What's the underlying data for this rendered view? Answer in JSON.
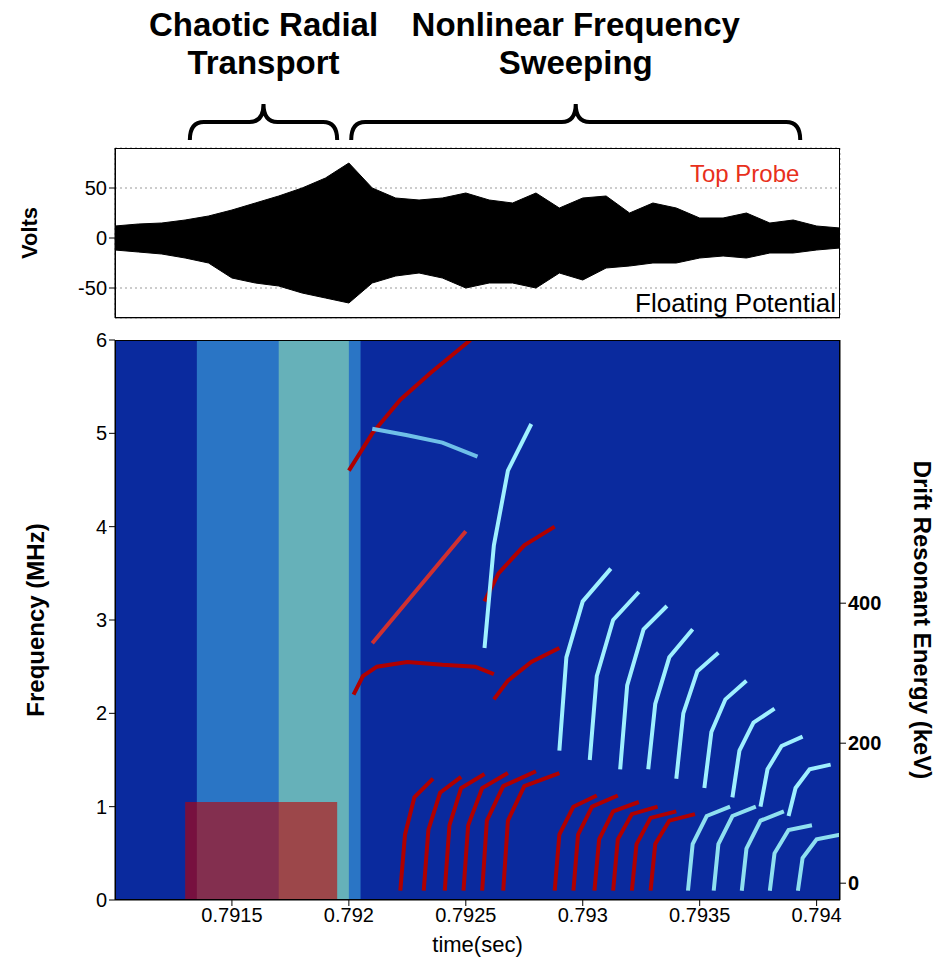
{
  "chart_data": [
    {
      "type": "area",
      "y_label": "Volts",
      "brackets": [
        {
          "text": "Chaotic Radial Transport",
          "x": [
            0.79132,
            0.79195
          ]
        },
        {
          "text": "Nonlinear Frequency Sweeping",
          "x": [
            0.79201,
            0.79393
          ]
        }
      ],
      "annotations": [
        {
          "text": "Top Probe",
          "color": "#e8301c"
        },
        {
          "text": "Floating Potential",
          "color": "#000000"
        }
      ],
      "x": [
        0.791,
        0.7911,
        0.7912,
        0.7913,
        0.7914,
        0.7915,
        0.7916,
        0.7917,
        0.7918,
        0.7919,
        0.792,
        0.7921,
        0.7922,
        0.7923,
        0.7924,
        0.7925,
        0.7926,
        0.7927,
        0.7928,
        0.7929,
        0.793,
        0.7931,
        0.7932,
        0.7933,
        0.7934,
        0.7935,
        0.7936,
        0.7937,
        0.7938,
        0.7939,
        0.794,
        0.7941
      ],
      "series": [
        {
          "color": "#000000",
          "low": [
            -12,
            -14,
            -16,
            -20,
            -25,
            -40,
            -45,
            -48,
            -55,
            -60,
            -65,
            -45,
            -38,
            -35,
            -40,
            -50,
            -45,
            -45,
            -50,
            -35,
            -42,
            -30,
            -28,
            -25,
            -25,
            -20,
            -18,
            -20,
            -15,
            -15,
            -12,
            -10
          ],
          "high": [
            12,
            14,
            15,
            18,
            22,
            28,
            35,
            42,
            50,
            60,
            75,
            50,
            40,
            38,
            40,
            45,
            38,
            35,
            45,
            30,
            40,
            42,
            25,
            35,
            30,
            20,
            20,
            25,
            15,
            18,
            12,
            10
          ]
        }
      ],
      "xlim": [
        0.791,
        0.7941
      ],
      "xticks": [
        0.7915,
        0.792,
        0.7925,
        0.793,
        0.7935,
        0.794
      ],
      "ylim": [
        -80,
        90
      ],
      "yticks": [
        -50,
        0,
        50
      ],
      "grid": true,
      "tick_labels": "y"
    },
    {
      "type": "spectrogram",
      "x_label": "time(sec)",
      "y_label": "Frequency (MHz)",
      "y2_label": "Drift Resonant Energy (keV)",
      "color": "#0a2a9e",
      "xlim": [
        0.791,
        0.7941
      ],
      "xticks": [
        0.7915,
        0.792,
        0.7925,
        0.793,
        0.7935,
        0.794
      ],
      "ylim": [
        0,
        6
      ],
      "yticks": [
        0,
        1,
        2,
        3,
        4,
        5,
        6
      ],
      "y2lim": [
        -24,
        776
      ],
      "y2ticks": [
        0,
        200,
        400
      ],
      "grid": false,
      "regions": [
        {
          "x": [
            0.79135,
            0.79205
          ],
          "y": [
            0,
            6
          ],
          "color": "#3fa8e0"
        },
        {
          "x": [
            0.7917,
            0.792
          ],
          "y": [
            0,
            6
          ],
          "color": "#8fd8b0"
        },
        {
          "x": [
            0.7913,
            0.79195
          ],
          "y": [
            0,
            1.05
          ],
          "color": "#c00000"
        }
      ],
      "series": [
        {
          "color": "#b00000",
          "x": [
            0.792,
            0.7921,
            0.79222,
            0.79235,
            0.79252
          ],
          "values": [
            4.6,
            5.0,
            5.36,
            5.65,
            6.0
          ]
        },
        {
          "color": "#b00000",
          "x": [
            0.79202,
            0.79206,
            0.79212,
            0.79225,
            0.7924,
            0.79254,
            0.79262
          ],
          "values": [
            2.2,
            2.4,
            2.5,
            2.55,
            2.52,
            2.5,
            2.42
          ]
        },
        {
          "color": "#d03030",
          "x": [
            0.7921,
            0.79225,
            0.7924,
            0.7925
          ],
          "values": [
            2.75,
            3.2,
            3.65,
            3.95
          ]
        },
        {
          "color": "#6fc0e8",
          "x": [
            0.7921,
            0.79225,
            0.7924,
            0.79255
          ],
          "values": [
            5.05,
            4.98,
            4.9,
            4.75
          ]
        },
        {
          "color": "#b00000",
          "x": [
            0.79258,
            0.79264,
            0.79275,
            0.79288
          ],
          "values": [
            3.2,
            3.5,
            3.8,
            4.0
          ]
        },
        {
          "color": "#b00000",
          "x": [
            0.79262,
            0.79268,
            0.79278,
            0.7929
          ],
          "values": [
            2.15,
            2.35,
            2.55,
            2.7
          ]
        },
        {
          "color": "#9ff0ff",
          "x": [
            0.79258,
            0.79262,
            0.79268,
            0.79278
          ],
          "values": [
            2.7,
            3.8,
            4.6,
            5.1
          ]
        },
        {
          "color": "#9ff0ff",
          "x": [
            0.7929,
            0.79293,
            0.793,
            0.79312
          ],
          "values": [
            1.6,
            2.6,
            3.2,
            3.55
          ]
        },
        {
          "color": "#9ff0ff",
          "x": [
            0.79303,
            0.79306,
            0.79313,
            0.79324
          ],
          "values": [
            1.5,
            2.4,
            3.0,
            3.3
          ]
        },
        {
          "color": "#9ff0ff",
          "x": [
            0.79316,
            0.79319,
            0.79326,
            0.79336
          ],
          "values": [
            1.4,
            2.3,
            2.9,
            3.15
          ]
        },
        {
          "color": "#9ff0ff",
          "x": [
            0.79328,
            0.79331,
            0.79337,
            0.79347
          ],
          "values": [
            1.4,
            2.1,
            2.6,
            2.9
          ]
        },
        {
          "color": "#9ff0ff",
          "x": [
            0.7934,
            0.79343,
            0.79349,
            0.79358
          ],
          "values": [
            1.3,
            2.0,
            2.45,
            2.65
          ]
        },
        {
          "color": "#9ff0ff",
          "x": [
            0.79352,
            0.79355,
            0.79361,
            0.7937
          ],
          "values": [
            1.2,
            1.8,
            2.15,
            2.35
          ]
        },
        {
          "color": "#9ff0ff",
          "x": [
            0.79364,
            0.79367,
            0.79373,
            0.79382
          ],
          "values": [
            1.1,
            1.6,
            1.9,
            2.05
          ]
        },
        {
          "color": "#9ff0ff",
          "x": [
            0.79376,
            0.79379,
            0.79385,
            0.79394
          ],
          "values": [
            1.0,
            1.4,
            1.65,
            1.75
          ]
        },
        {
          "color": "#9ff0ff",
          "x": [
            0.79388,
            0.79391,
            0.79397,
            0.79406
          ],
          "values": [
            0.9,
            1.2,
            1.4,
            1.45
          ]
        },
        {
          "color": "#b00000",
          "x": [
            0.79222,
            0.79224,
            0.79228,
            0.79236
          ],
          "values": [
            0.1,
            0.7,
            1.1,
            1.3
          ]
        },
        {
          "color": "#b00000",
          "x": [
            0.79232,
            0.79234,
            0.79239,
            0.79248
          ],
          "values": [
            0.1,
            0.75,
            1.15,
            1.32
          ]
        },
        {
          "color": "#b00000",
          "x": [
            0.79241,
            0.79243,
            0.79248,
            0.79258
          ],
          "values": [
            0.1,
            0.8,
            1.2,
            1.35
          ]
        },
        {
          "color": "#b00000",
          "x": [
            0.79249,
            0.79251,
            0.79257,
            0.79268
          ],
          "values": [
            0.1,
            0.8,
            1.2,
            1.36
          ]
        },
        {
          "color": "#b00000",
          "x": [
            0.79257,
            0.79259,
            0.79266,
            0.7928
          ],
          "values": [
            0.1,
            0.85,
            1.22,
            1.38
          ]
        },
        {
          "color": "#b00000",
          "x": [
            0.79266,
            0.79268,
            0.79275,
            0.7929
          ],
          "values": [
            0.1,
            0.85,
            1.22,
            1.36
          ]
        },
        {
          "color": "#b00000",
          "x": [
            0.79288,
            0.7929,
            0.79296,
            0.79306
          ],
          "values": [
            0.1,
            0.7,
            1.0,
            1.12
          ]
        },
        {
          "color": "#b00000",
          "x": [
            0.79296,
            0.79298,
            0.79304,
            0.79315
          ],
          "values": [
            0.1,
            0.7,
            1.0,
            1.12
          ]
        },
        {
          "color": "#b00000",
          "x": [
            0.79305,
            0.79307,
            0.79313,
            0.79324
          ],
          "values": [
            0.1,
            0.65,
            0.95,
            1.05
          ]
        },
        {
          "color": "#b00000",
          "x": [
            0.79313,
            0.79315,
            0.79321,
            0.79332
          ],
          "values": [
            0.1,
            0.65,
            0.92,
            1.0
          ]
        },
        {
          "color": "#b00000",
          "x": [
            0.79321,
            0.79323,
            0.79329,
            0.7934
          ],
          "values": [
            0.1,
            0.6,
            0.88,
            0.95
          ]
        },
        {
          "color": "#b00000",
          "x": [
            0.79329,
            0.79331,
            0.79337,
            0.79348
          ],
          "values": [
            0.1,
            0.6,
            0.85,
            0.92
          ]
        },
        {
          "color": "#8fe0f0",
          "x": [
            0.79345,
            0.79347,
            0.79353,
            0.79363
          ],
          "values": [
            0.1,
            0.6,
            0.9,
            1.0
          ]
        },
        {
          "color": "#8fe0f0",
          "x": [
            0.79356,
            0.79358,
            0.79364,
            0.79374
          ],
          "values": [
            0.1,
            0.6,
            0.9,
            1.0
          ]
        },
        {
          "color": "#8fe0f0",
          "x": [
            0.79368,
            0.7937,
            0.79376,
            0.79386
          ],
          "values": [
            0.1,
            0.55,
            0.85,
            0.95
          ]
        },
        {
          "color": "#8fe0f0",
          "x": [
            0.7938,
            0.79382,
            0.79388,
            0.79398
          ],
          "values": [
            0.1,
            0.5,
            0.75,
            0.8
          ]
        },
        {
          "color": "#8fe0f0",
          "x": [
            0.79392,
            0.79394,
            0.794,
            0.7941
          ],
          "values": [
            0.1,
            0.45,
            0.65,
            0.7
          ]
        }
      ]
    }
  ]
}
